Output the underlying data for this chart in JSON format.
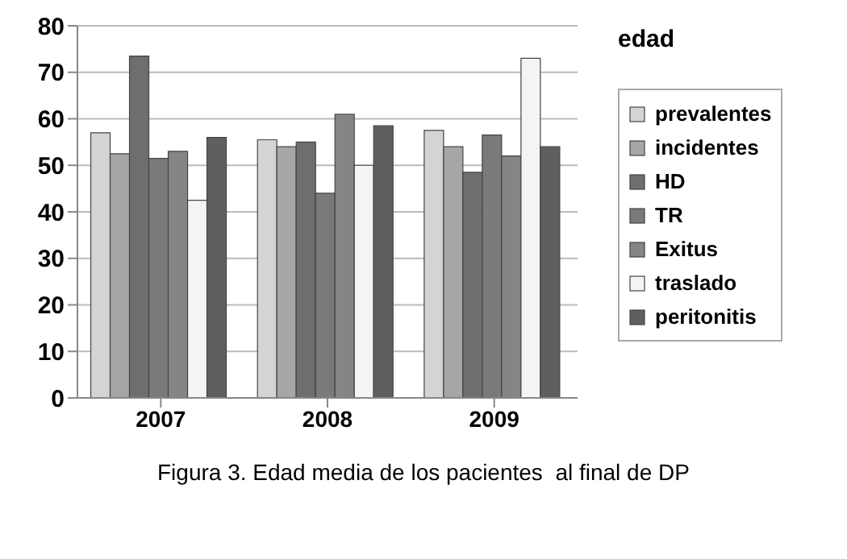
{
  "chart_data": {
    "type": "bar",
    "legend_title": "edad",
    "categories": [
      "2007",
      "2008",
      "2009"
    ],
    "series": [
      {
        "name": "prevalentes",
        "color": "#d4d4d4",
        "values": [
          57,
          55.5,
          57.5
        ]
      },
      {
        "name": "incidentes",
        "color": "#a6a6a6",
        "values": [
          52.5,
          54,
          54
        ]
      },
      {
        "name": "HD",
        "color": "#6e6e6e",
        "values": [
          73.5,
          55,
          48.5
        ]
      },
      {
        "name": "TR",
        "color": "#7a7a7a",
        "values": [
          51.5,
          44,
          56.5
        ]
      },
      {
        "name": "Exitus",
        "color": "#858585",
        "values": [
          53,
          61,
          52
        ]
      },
      {
        "name": "traslado",
        "color": "#f4f4f4",
        "values": [
          42.5,
          50,
          73
        ]
      },
      {
        "name": "peritonitis",
        "color": "#5f5f5f",
        "values": [
          56,
          58.5,
          54
        ]
      }
    ],
    "ylim": [
      0,
      80
    ],
    "yticks": [
      0,
      10,
      20,
      30,
      40,
      50,
      60,
      70,
      80
    ],
    "grid": "y",
    "legend": "right",
    "annotations": [
      "Figura 3. Edad media de los pacientes  al final de DP"
    ]
  }
}
